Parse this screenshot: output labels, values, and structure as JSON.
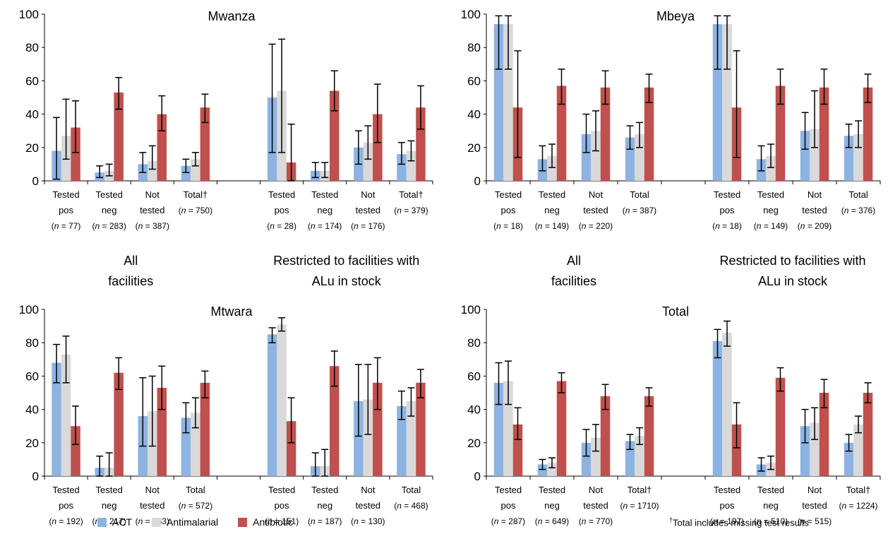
{
  "colors": {
    "act": "#8db3e2",
    "antimalarial": "#d9d9d9",
    "antibiotic": "#c0504d"
  },
  "legend": {
    "act": "ACT",
    "antimalarial": "Antimalarial",
    "antibiotic": "Antibiotic"
  },
  "footnote": {
    "mark": "†",
    "text": "Total includes missing test results"
  },
  "section_labels": {
    "all": [
      "All",
      "facilities"
    ],
    "restricted": [
      "Restricted to facilities with",
      "ALu in stock"
    ]
  },
  "chart_data": [
    {
      "type": "bar",
      "title": "Mwanza",
      "ylim": [
        0,
        100
      ],
      "yticks": [
        0,
        20,
        40,
        60,
        80,
        100
      ],
      "series_names": [
        "ACT",
        "Antimalarial",
        "Antibiotic"
      ],
      "groups": [
        {
          "label": [
            "Tested",
            "pos"
          ],
          "n": "77",
          "dagger": false,
          "values": [
            18,
            27,
            32
          ],
          "errors": [
            [
              1,
              38
            ],
            [
              13,
              49
            ],
            [
              17,
              48
            ]
          ]
        },
        {
          "label": [
            "Tested",
            "neg"
          ],
          "n": "283",
          "dagger": false,
          "values": [
            5,
            6,
            53
          ],
          "errors": [
            [
              2,
              9
            ],
            [
              3,
              10
            ],
            [
              43,
              62
            ]
          ]
        },
        {
          "label": [
            "Not",
            "tested"
          ],
          "n": "387",
          "dagger": false,
          "values": [
            10,
            12,
            40
          ],
          "errors": [
            [
              5,
              17
            ],
            [
              7,
              21
            ],
            [
              30,
              51
            ]
          ]
        },
        {
          "label": [
            "Total"
          ],
          "n": "750",
          "dagger": true,
          "values": [
            9,
            13,
            44
          ],
          "errors": [
            [
              5,
              13
            ],
            [
              9,
              17
            ],
            [
              35,
              52
            ]
          ]
        },
        {
          "label": [
            "Tested",
            "pos"
          ],
          "n": "28",
          "dagger": false,
          "values": [
            50,
            54,
            11
          ],
          "errors": [
            [
              17,
              82
            ],
            [
              17,
              85
            ],
            [
              0,
              34
            ]
          ]
        },
        {
          "label": [
            "Tested",
            "neg"
          ],
          "n": "174",
          "dagger": false,
          "values": [
            6,
            6,
            54
          ],
          "errors": [
            [
              2,
              11
            ],
            [
              2,
              11
            ],
            [
              42,
              66
            ]
          ]
        },
        {
          "label": [
            "Not",
            "tested"
          ],
          "n": "176",
          "dagger": false,
          "values": [
            20,
            23,
            40
          ],
          "errors": [
            [
              10,
              30
            ],
            [
              13,
              33
            ],
            [
              23,
              58
            ]
          ]
        },
        {
          "label": [
            "Total"
          ],
          "n": "379",
          "dagger": true,
          "values": [
            16,
            18,
            44
          ],
          "errors": [
            [
              10,
              23
            ],
            [
              12,
              24
            ],
            [
              31,
              57
            ]
          ]
        }
      ]
    },
    {
      "type": "bar",
      "title": "Mbeya",
      "ylim": [
        0,
        100
      ],
      "yticks": [
        0,
        20,
        40,
        60,
        80,
        100
      ],
      "series_names": [
        "ACT",
        "Antimalarial",
        "Antibiotic"
      ],
      "groups": [
        {
          "label": [
            "Tested",
            "pos"
          ],
          "n": "18",
          "dagger": false,
          "values": [
            94,
            94,
            44
          ],
          "errors": [
            [
              67,
              99
            ],
            [
              67,
              99
            ],
            [
              14,
              78
            ]
          ]
        },
        {
          "label": [
            "Tested",
            "neg"
          ],
          "n": "149",
          "dagger": false,
          "values": [
            13,
            15,
            57
          ],
          "errors": [
            [
              6,
              21
            ],
            [
              8,
              22
            ],
            [
              46,
              67
            ]
          ]
        },
        {
          "label": [
            "Not",
            "tested"
          ],
          "n": "220",
          "dagger": false,
          "values": [
            28,
            30,
            56
          ],
          "errors": [
            [
              17,
              40
            ],
            [
              18,
              42
            ],
            [
              46,
              66
            ]
          ]
        },
        {
          "label": [
            "Total"
          ],
          "n": "387",
          "dagger": false,
          "values": [
            26,
            28,
            56
          ],
          "errors": [
            [
              19,
              33
            ],
            [
              20,
              35
            ],
            [
              47,
              64
            ]
          ]
        },
        {
          "label": [
            "Tested",
            "pos"
          ],
          "n": "18",
          "dagger": false,
          "values": [
            94,
            94,
            44
          ],
          "errors": [
            [
              67,
              99
            ],
            [
              67,
              99
            ],
            [
              14,
              78
            ]
          ]
        },
        {
          "label": [
            "Tested",
            "neg"
          ],
          "n": "149",
          "dagger": false,
          "values": [
            13,
            15,
            57
          ],
          "errors": [
            [
              6,
              21
            ],
            [
              8,
              22
            ],
            [
              46,
              67
            ]
          ]
        },
        {
          "label": [
            "Not",
            "tested"
          ],
          "n": "209",
          "dagger": false,
          "values": [
            30,
            31,
            56
          ],
          "errors": [
            [
              19,
              41
            ],
            [
              20,
              54
            ],
            [
              46,
              67
            ]
          ]
        },
        {
          "label": [
            "Total"
          ],
          "n": "376",
          "dagger": false,
          "values": [
            27,
            28,
            56
          ],
          "errors": [
            [
              20,
              34
            ],
            [
              20,
              36
            ],
            [
              47,
              64
            ]
          ]
        }
      ]
    },
    {
      "type": "bar",
      "title": "Mtwara",
      "ylim": [
        0,
        100
      ],
      "yticks": [
        0,
        20,
        40,
        60,
        80,
        100
      ],
      "series_names": [
        "ACT",
        "Antimalarial",
        "Antibiotic"
      ],
      "groups": [
        {
          "label": [
            "Tested",
            "pos"
          ],
          "n": "192",
          "dagger": false,
          "values": [
            68,
            73,
            30
          ],
          "errors": [
            [
              56,
              79
            ],
            [
              56,
              84
            ],
            [
              19,
              42
            ]
          ]
        },
        {
          "label": [
            "Tested",
            "neg"
          ],
          "n": "217",
          "dagger": false,
          "values": [
            5,
            5,
            62
          ],
          "errors": [
            [
              0,
              12
            ],
            [
              0,
              14
            ],
            [
              52,
              71
            ]
          ]
        },
        {
          "label": [
            "Not",
            "tested"
          ],
          "n": "163",
          "dagger": false,
          "values": [
            36,
            39,
            53
          ],
          "errors": [
            [
              18,
              59
            ],
            [
              18,
              60
            ],
            [
              40,
              66
            ]
          ]
        },
        {
          "label": [
            "Total"
          ],
          "n": "572",
          "dagger": false,
          "values": [
            35,
            38,
            56
          ],
          "errors": [
            [
              26,
              44
            ],
            [
              29,
              47
            ],
            [
              47,
              63
            ]
          ]
        },
        {
          "label": [
            "Tested",
            "pos"
          ],
          "n": "151",
          "dagger": false,
          "values": [
            85,
            91,
            33
          ],
          "errors": [
            [
              80,
              89
            ],
            [
              87,
              95
            ],
            [
              20,
              47
            ]
          ]
        },
        {
          "label": [
            "Tested",
            "neg"
          ],
          "n": "187",
          "dagger": false,
          "values": [
            6,
            6,
            66
          ],
          "errors": [
            [
              0,
              14
            ],
            [
              0,
              16
            ],
            [
              54,
              75
            ]
          ]
        },
        {
          "label": [
            "Not",
            "tested"
          ],
          "n": "130",
          "dagger": false,
          "values": [
            45,
            46,
            56
          ],
          "errors": [
            [
              24,
              67
            ],
            [
              25,
              67
            ],
            [
              40,
              71
            ]
          ]
        },
        {
          "label": [
            "Total"
          ],
          "n": "468",
          "dagger": false,
          "values": [
            42,
            45,
            56
          ],
          "errors": [
            [
              34,
              51
            ],
            [
              36,
              53
            ],
            [
              47,
              64
            ]
          ]
        }
      ]
    },
    {
      "type": "bar",
      "title": "Total",
      "ylim": [
        0,
        100
      ],
      "yticks": [
        0,
        20,
        40,
        60,
        80,
        100
      ],
      "series_names": [
        "ACT",
        "Antimalarial",
        "Antibiotic"
      ],
      "groups": [
        {
          "label": [
            "Tested",
            "pos"
          ],
          "n": "287",
          "dagger": false,
          "values": [
            56,
            57,
            31
          ],
          "errors": [
            [
              43,
              68
            ],
            [
              43,
              69
            ],
            [
              22,
              41
            ]
          ]
        },
        {
          "label": [
            "Tested",
            "neg"
          ],
          "n": "649",
          "dagger": false,
          "values": [
            7,
            8,
            57
          ],
          "errors": [
            [
              4,
              10
            ],
            [
              5,
              11
            ],
            [
              50,
              62
            ]
          ]
        },
        {
          "label": [
            "Not",
            "tested"
          ],
          "n": "770",
          "dagger": false,
          "values": [
            20,
            23,
            48
          ],
          "errors": [
            [
              12,
              28
            ],
            [
              15,
              31
            ],
            [
              40,
              55
            ]
          ]
        },
        {
          "label": [
            "Total"
          ],
          "n": "1710",
          "dagger": true,
          "values": [
            21,
            24,
            48
          ],
          "errors": [
            [
              16,
              25
            ],
            [
              19,
              29
            ],
            [
              42,
              53
            ]
          ]
        },
        {
          "label": [
            "Tested",
            "pos"
          ],
          "n": "197",
          "dagger": false,
          "values": [
            81,
            86,
            31
          ],
          "errors": [
            [
              71,
              88
            ],
            [
              78,
              93
            ],
            [
              17,
              44
            ]
          ]
        },
        {
          "label": [
            "Tested",
            "neg"
          ],
          "n": "510",
          "dagger": false,
          "values": [
            7,
            8,
            59
          ],
          "errors": [
            [
              3,
              11
            ],
            [
              4,
              12
            ],
            [
              51,
              65
            ]
          ]
        },
        {
          "label": [
            "Not",
            "tested"
          ],
          "n": "515",
          "dagger": false,
          "values": [
            30,
            32,
            50
          ],
          "errors": [
            [
              20,
              40
            ],
            [
              22,
              41
            ],
            [
              41,
              58
            ]
          ]
        },
        {
          "label": [
            "Total"
          ],
          "n": "1224",
          "dagger": true,
          "values": [
            20,
            31,
            50
          ],
          "errors": [
            [
              15,
              25
            ],
            [
              26,
              36
            ],
            [
              44,
              56
            ]
          ]
        }
      ]
    }
  ]
}
